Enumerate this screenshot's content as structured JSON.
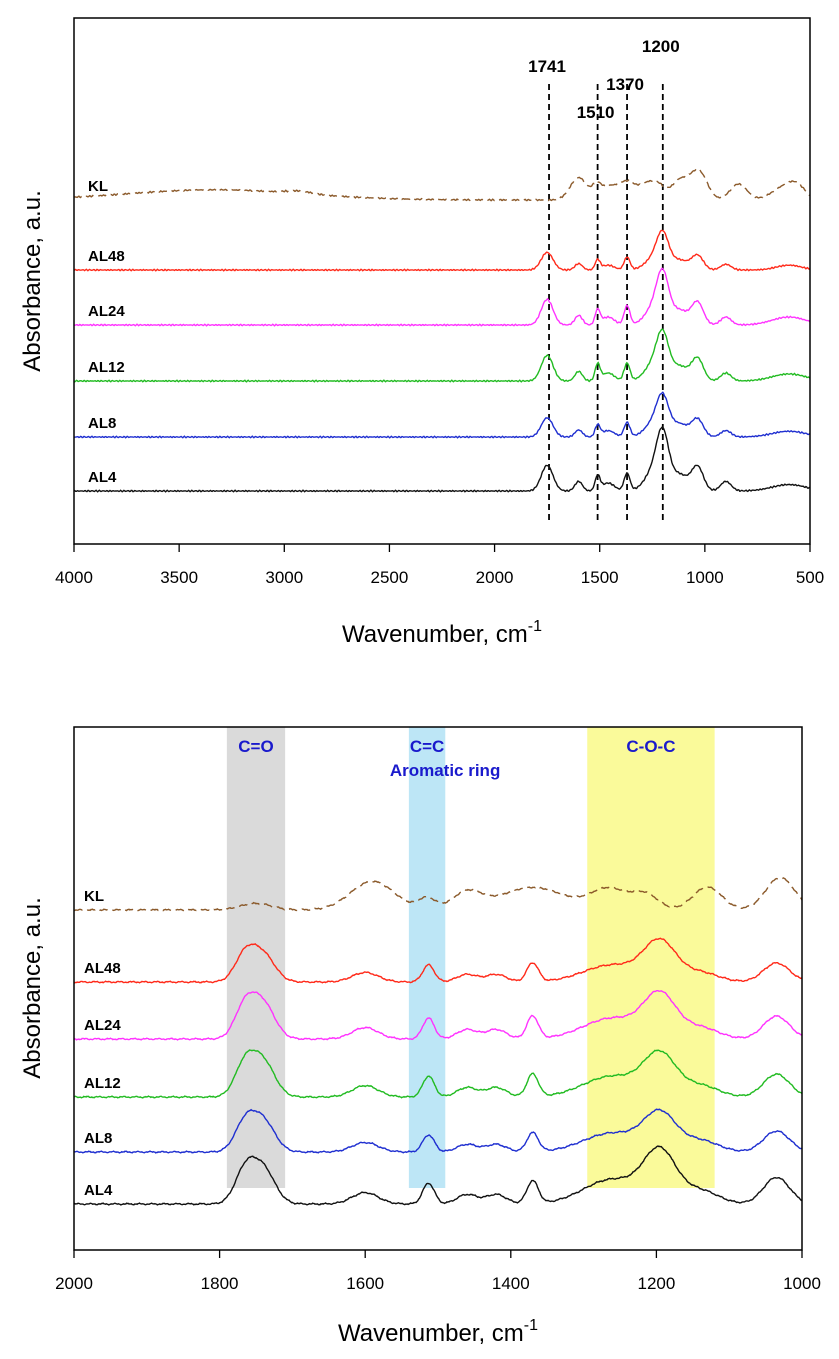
{
  "chart_data": [
    {
      "type": "line",
      "xlabel": "Wavenumber, cm",
      "xlabel_sup": "-1",
      "ylabel": "Absorbance, a.u.",
      "xlim": [
        4000,
        500
      ],
      "xticks": [
        "4000",
        "3500",
        "3000",
        "2500",
        "2000",
        "1500",
        "1000",
        "500"
      ],
      "peak_lines": [
        {
          "x": 1741,
          "label": "1741"
        },
        {
          "x": 1510,
          "label": "1510"
        },
        {
          "x": 1370,
          "label": "1370"
        },
        {
          "x": 1200,
          "label": "1200"
        }
      ],
      "series": [
        {
          "name": "KL",
          "color": "#8B5A2B",
          "dash": true,
          "offset": 4.1,
          "base": 0.0,
          "peaks": [
            [
              3330,
              420,
              0.32
            ],
            [
              2930,
              60,
              0.08
            ],
            [
              1600,
              40,
              0.7
            ],
            [
              1515,
              20,
              0.35
            ],
            [
              1460,
              40,
              0.4
            ],
            [
              1370,
              40,
              0.55
            ],
            [
              1270,
              40,
              0.5
            ],
            [
              1215,
              30,
              0.3
            ],
            [
              1120,
              40,
              0.6
            ],
            [
              1030,
              40,
              0.9
            ],
            [
              840,
              40,
              0.5
            ],
            [
              620,
              60,
              0.4
            ],
            [
              560,
              40,
              0.3
            ]
          ]
        },
        {
          "name": "AL48",
          "color": "#FF2A1A",
          "dash": false,
          "offset": 2.95,
          "base": 0.0,
          "peaks": [
            [
              1750,
              28,
              0.55
            ],
            [
              1600,
              18,
              0.2
            ],
            [
              1510,
              12,
              0.3
            ],
            [
              1460,
              30,
              0.15
            ],
            [
              1370,
              14,
              0.4
            ],
            [
              1235,
              45,
              0.4
            ],
            [
              1200,
              28,
              0.9
            ],
            [
              1120,
              40,
              0.3
            ],
            [
              1035,
              28,
              0.45
            ],
            [
              900,
              25,
              0.18
            ],
            [
              600,
              60,
              0.15
            ]
          ]
        },
        {
          "name": "AL24",
          "color": "#FF33FF",
          "dash": false,
          "offset": 1.95,
          "base": 0.0,
          "peaks": [
            [
              1750,
              28,
              0.8
            ],
            [
              1600,
              18,
              0.3
            ],
            [
              1510,
              12,
              0.45
            ],
            [
              1460,
              30,
              0.25
            ],
            [
              1370,
              14,
              0.6
            ],
            [
              1235,
              45,
              0.6
            ],
            [
              1200,
              28,
              1.25
            ],
            [
              1120,
              40,
              0.45
            ],
            [
              1035,
              28,
              0.7
            ],
            [
              900,
              25,
              0.25
            ],
            [
              600,
              80,
              0.25
            ]
          ]
        },
        {
          "name": "AL12",
          "color": "#22BB22",
          "dash": false,
          "offset": 0.95,
          "base": 0.0,
          "peaks": [
            [
              1750,
              28,
              0.8
            ],
            [
              1600,
              18,
              0.3
            ],
            [
              1510,
              12,
              0.5
            ],
            [
              1460,
              30,
              0.25
            ],
            [
              1370,
              14,
              0.55
            ],
            [
              1235,
              45,
              0.6
            ],
            [
              1200,
              28,
              1.1
            ],
            [
              1120,
              40,
              0.45
            ],
            [
              1035,
              28,
              0.7
            ],
            [
              900,
              25,
              0.25
            ],
            [
              600,
              80,
              0.22
            ]
          ]
        },
        {
          "name": "AL8",
          "color": "#1F2FD0",
          "dash": false,
          "offset": 0.0,
          "base": 0.0,
          "peaks": [
            [
              1750,
              28,
              0.6
            ],
            [
              1600,
              18,
              0.22
            ],
            [
              1510,
              12,
              0.35
            ],
            [
              1460,
              30,
              0.2
            ],
            [
              1370,
              14,
              0.45
            ],
            [
              1235,
              45,
              0.5
            ],
            [
              1200,
              28,
              0.95
            ],
            [
              1120,
              40,
              0.4
            ],
            [
              1035,
              28,
              0.55
            ],
            [
              900,
              25,
              0.2
            ],
            [
              600,
              80,
              0.18
            ]
          ]
        },
        {
          "name": "AL4",
          "color": "#111111",
          "dash": false,
          "offset": -1.0,
          "base": 0.0,
          "peaks": [
            [
              1750,
              28,
              0.8
            ],
            [
              1600,
              18,
              0.3
            ],
            [
              1510,
              12,
              0.45
            ],
            [
              1460,
              30,
              0.25
            ],
            [
              1370,
              14,
              0.55
            ],
            [
              1235,
              45,
              0.7
            ],
            [
              1200,
              28,
              1.4
            ],
            [
              1120,
              40,
              0.5
            ],
            [
              1035,
              28,
              0.75
            ],
            [
              900,
              25,
              0.3
            ],
            [
              600,
              80,
              0.2
            ]
          ]
        }
      ]
    },
    {
      "type": "line",
      "xlabel": "Wavenumber, cm",
      "xlabel_sup": "-1",
      "ylabel": "Absorbance, a.u.",
      "xlim": [
        2000,
        1000
      ],
      "xticks": [
        "2000",
        "1800",
        "1600",
        "1400",
        "1200",
        "1000"
      ],
      "bands": [
        {
          "x1": 1790,
          "x2": 1710,
          "color": "#DADADA",
          "label": "C=O",
          "sublabel": ""
        },
        {
          "x1": 1540,
          "x2": 1490,
          "color": "#BDE6F6",
          "label": "C=C",
          "sublabel": "Aromatic ring"
        },
        {
          "x1": 1295,
          "x2": 1120,
          "color": "#FAFA9A",
          "label": "C-O-C",
          "sublabel": ""
        }
      ],
      "band_label_color": "#1A1ACC",
      "series": [
        {
          "name": "KL",
          "color": "#8B5A2B",
          "dash": true,
          "offset": 4.05,
          "peaks": [
            [
              1760,
              18,
              0.1
            ],
            [
              1740,
              18,
              0.1
            ],
            [
              1590,
              30,
              0.75
            ],
            [
              1515,
              12,
              0.3
            ],
            [
              1460,
              20,
              0.45
            ],
            [
              1370,
              45,
              0.6
            ],
            [
              1265,
              25,
              0.55
            ],
            [
              1215,
              18,
              0.4
            ],
            [
              1130,
              20,
              0.6
            ],
            [
              1030,
              20,
              0.85
            ]
          ]
        },
        {
          "name": "AL48",
          "color": "#FF2A1A",
          "dash": false,
          "offset": 2.95,
          "peaks": [
            [
              1765,
              14,
              0.7
            ],
            [
              1740,
              16,
              0.7
            ],
            [
              1600,
              18,
              0.25
            ],
            [
              1513,
              8,
              0.45
            ],
            [
              1460,
              14,
              0.2
            ],
            [
              1420,
              14,
              0.2
            ],
            [
              1370,
              8,
              0.5
            ],
            [
              1260,
              40,
              0.45
            ],
            [
              1195,
              22,
              1.0
            ],
            [
              1140,
              25,
              0.25
            ],
            [
              1035,
              18,
              0.5
            ]
          ]
        },
        {
          "name": "AL24",
          "color": "#FF33FF",
          "dash": false,
          "offset": 1.95,
          "peaks": [
            [
              1765,
              14,
              0.85
            ],
            [
              1740,
              16,
              0.9
            ],
            [
              1600,
              18,
              0.3
            ],
            [
              1513,
              8,
              0.55
            ],
            [
              1460,
              14,
              0.25
            ],
            [
              1420,
              14,
              0.25
            ],
            [
              1370,
              8,
              0.6
            ],
            [
              1260,
              40,
              0.55
            ],
            [
              1195,
              22,
              1.1
            ],
            [
              1140,
              25,
              0.3
            ],
            [
              1035,
              18,
              0.6
            ]
          ]
        },
        {
          "name": "AL12",
          "color": "#22BB22",
          "dash": false,
          "offset": 0.95,
          "peaks": [
            [
              1765,
              14,
              0.85
            ],
            [
              1740,
              16,
              0.9
            ],
            [
              1600,
              18,
              0.3
            ],
            [
              1513,
              8,
              0.55
            ],
            [
              1460,
              14,
              0.25
            ],
            [
              1420,
              14,
              0.25
            ],
            [
              1370,
              8,
              0.6
            ],
            [
              1260,
              40,
              0.55
            ],
            [
              1195,
              22,
              1.05
            ],
            [
              1140,
              25,
              0.3
            ],
            [
              1035,
              18,
              0.6
            ]
          ]
        },
        {
          "name": "AL8",
          "color": "#1F2FD0",
          "dash": false,
          "offset": 0.0,
          "peaks": [
            [
              1765,
              14,
              0.75
            ],
            [
              1740,
              16,
              0.8
            ],
            [
              1600,
              18,
              0.25
            ],
            [
              1513,
              8,
              0.45
            ],
            [
              1460,
              14,
              0.2
            ],
            [
              1420,
              14,
              0.2
            ],
            [
              1370,
              8,
              0.5
            ],
            [
              1260,
              40,
              0.5
            ],
            [
              1195,
              22,
              0.95
            ],
            [
              1140,
              25,
              0.3
            ],
            [
              1035,
              18,
              0.55
            ]
          ]
        },
        {
          "name": "AL4",
          "color": "#111111",
          "dash": false,
          "offset": -1.0,
          "peaks": [
            [
              1765,
              14,
              0.85
            ],
            [
              1740,
              16,
              0.9
            ],
            [
              1600,
              18,
              0.3
            ],
            [
              1513,
              8,
              0.55
            ],
            [
              1460,
              14,
              0.25
            ],
            [
              1420,
              14,
              0.25
            ],
            [
              1370,
              8,
              0.6
            ],
            [
              1260,
              40,
              0.65
            ],
            [
              1195,
              22,
              1.3
            ],
            [
              1140,
              25,
              0.35
            ],
            [
              1035,
              18,
              0.7
            ]
          ]
        }
      ]
    }
  ]
}
